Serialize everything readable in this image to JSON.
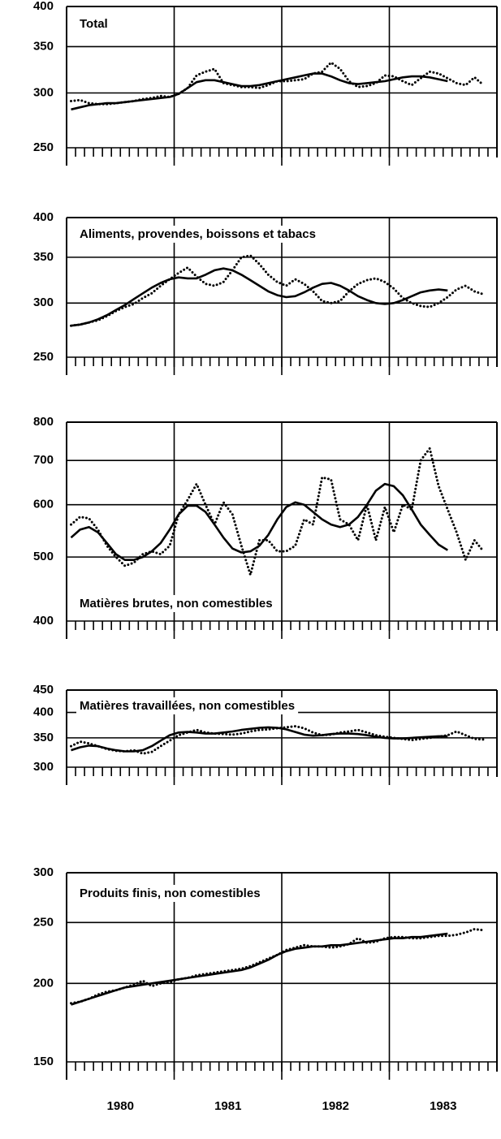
{
  "chart_data": [
    {
      "type": "line",
      "title": "Total",
      "log": true,
      "grid": true,
      "ylim": [
        250,
        400
      ],
      "yticks": [
        250,
        300,
        350,
        400
      ],
      "x": [
        "1980-01",
        "1980-02",
        "1980-03",
        "1980-04",
        "1980-05",
        "1980-06",
        "1980-07",
        "1980-08",
        "1980-09",
        "1980-10",
        "1980-11",
        "1980-12",
        "1981-01",
        "1981-02",
        "1981-03",
        "1981-04",
        "1981-05",
        "1981-06",
        "1981-07",
        "1981-08",
        "1981-09",
        "1981-10",
        "1981-11",
        "1981-12",
        "1982-01",
        "1982-02",
        "1982-03",
        "1982-04",
        "1982-05",
        "1982-06",
        "1982-07",
        "1982-08",
        "1982-09",
        "1982-10",
        "1982-11",
        "1982-12",
        "1983-01",
        "1983-02",
        "1983-03",
        "1983-04",
        "1983-05",
        "1983-06",
        "1983-07",
        "1983-08",
        "1983-09",
        "1983-10",
        "1983-11"
      ],
      "series": [
        {
          "color": "#000000",
          "style": "dotted",
          "values": [
            292,
            293,
            290,
            289,
            289,
            290,
            291,
            292,
            294,
            295,
            297,
            296,
            299,
            305,
            318,
            322,
            325,
            310,
            308,
            306,
            306,
            305,
            308,
            312,
            312,
            313,
            314,
            320,
            322,
            332,
            325,
            312,
            306,
            307,
            310,
            318,
            317,
            312,
            308,
            315,
            322,
            320,
            315,
            310,
            308,
            316,
            308
          ]
        },
        {
          "color": "#000000",
          "style": "solid",
          "values": [
            284,
            286,
            288,
            289,
            290,
            290,
            291,
            292,
            293,
            294,
            295,
            296,
            299,
            305,
            311,
            313,
            313,
            311,
            309,
            307,
            307,
            308,
            310,
            312,
            314,
            316,
            318,
            320,
            320,
            317,
            313,
            310,
            309,
            310,
            311,
            312,
            314,
            316,
            317,
            317,
            316,
            314,
            312,
            null,
            null,
            null,
            null
          ]
        }
      ]
    },
    {
      "type": "line",
      "title": "Aliments, provendes, boissons et tabacs",
      "log": true,
      "grid": true,
      "ylim": [
        250,
        400
      ],
      "yticks": [
        250,
        300,
        350,
        400
      ],
      "x": [
        "1980-01",
        "1980-02",
        "1980-03",
        "1980-04",
        "1980-05",
        "1980-06",
        "1980-07",
        "1980-08",
        "1980-09",
        "1980-10",
        "1980-11",
        "1980-12",
        "1981-01",
        "1981-02",
        "1981-03",
        "1981-04",
        "1981-05",
        "1981-06",
        "1981-07",
        "1981-08",
        "1981-09",
        "1981-10",
        "1981-11",
        "1981-12",
        "1982-01",
        "1982-02",
        "1982-03",
        "1982-04",
        "1982-05",
        "1982-06",
        "1982-07",
        "1982-08",
        "1982-09",
        "1982-10",
        "1982-11",
        "1982-12",
        "1983-01",
        "1983-02",
        "1983-03",
        "1983-04",
        "1983-05",
        "1983-06",
        "1983-07",
        "1983-08",
        "1983-09",
        "1983-10",
        "1983-11"
      ],
      "series": [
        {
          "color": "#000000",
          "style": "dotted",
          "values": [
            278,
            279,
            281,
            283,
            287,
            292,
            296,
            299,
            305,
            310,
            318,
            325,
            332,
            338,
            328,
            320,
            318,
            322,
            335,
            350,
            352,
            342,
            330,
            322,
            318,
            325,
            320,
            312,
            302,
            300,
            302,
            312,
            320,
            324,
            326,
            322,
            315,
            305,
            300,
            297,
            296,
            300,
            306,
            314,
            318,
            312,
            309
          ]
        },
        {
          "color": "#000000",
          "style": "solid",
          "values": [
            278,
            279,
            281,
            284,
            288,
            293,
            298,
            304,
            310,
            316,
            321,
            325,
            327,
            326,
            326,
            330,
            335,
            337,
            335,
            330,
            324,
            318,
            312,
            308,
            306,
            307,
            311,
            316,
            320,
            321,
            318,
            313,
            307,
            303,
            300,
            299,
            300,
            303,
            307,
            311,
            313,
            314,
            313,
            null,
            null,
            null,
            null
          ]
        }
      ]
    },
    {
      "type": "line",
      "title": "Matières brutes, non comestibles",
      "log": true,
      "grid": true,
      "ylim": [
        400,
        800
      ],
      "yticks": [
        400,
        500,
        600,
        700,
        800
      ],
      "x": [
        "1980-01",
        "1980-02",
        "1980-03",
        "1980-04",
        "1980-05",
        "1980-06",
        "1980-07",
        "1980-08",
        "1980-09",
        "1980-10",
        "1980-11",
        "1980-12",
        "1981-01",
        "1981-02",
        "1981-03",
        "1981-04",
        "1981-05",
        "1981-06",
        "1981-07",
        "1981-08",
        "1981-09",
        "1981-10",
        "1981-11",
        "1981-12",
        "1982-01",
        "1982-02",
        "1982-03",
        "1982-04",
        "1982-05",
        "1982-06",
        "1982-07",
        "1982-08",
        "1982-09",
        "1982-10",
        "1982-11",
        "1982-12",
        "1983-01",
        "1983-02",
        "1983-03",
        "1983-04",
        "1983-05",
        "1983-06",
        "1983-07",
        "1983-08",
        "1983-09",
        "1983-10",
        "1983-11"
      ],
      "series": [
        {
          "color": "#000000",
          "style": "dotted",
          "values": [
            560,
            575,
            572,
            550,
            520,
            500,
            485,
            490,
            505,
            510,
            505,
            520,
            580,
            610,
            645,
            600,
            560,
            605,
            580,
            520,
            470,
            530,
            530,
            510,
            510,
            520,
            570,
            560,
            660,
            655,
            570,
            560,
            530,
            600,
            530,
            595,
            545,
            600,
            590,
            700,
            730,
            640,
            590,
            545,
            495,
            530,
            510
          ]
        },
        {
          "color": "#000000",
          "style": "solid",
          "values": [
            535,
            550,
            555,
            545,
            525,
            505,
            495,
            495,
            500,
            510,
            525,
            550,
            580,
            598,
            598,
            585,
            560,
            535,
            515,
            508,
            510,
            520,
            540,
            570,
            595,
            605,
            600,
            585,
            570,
            560,
            555,
            560,
            575,
            600,
            630,
            645,
            640,
            620,
            590,
            560,
            540,
            522,
            512,
            null,
            null,
            null,
            null
          ]
        }
      ]
    },
    {
      "type": "line",
      "title": "Matières travaillées, non comestibles",
      "log": true,
      "grid": true,
      "ylim": [
        300,
        450
      ],
      "yticks": [
        300,
        350,
        400,
        450
      ],
      "x": [
        "1980-01",
        "1980-02",
        "1980-03",
        "1980-04",
        "1980-05",
        "1980-06",
        "1980-07",
        "1980-08",
        "1980-09",
        "1980-10",
        "1980-11",
        "1980-12",
        "1981-01",
        "1981-02",
        "1981-03",
        "1981-04",
        "1981-05",
        "1981-06",
        "1981-07",
        "1981-08",
        "1981-09",
        "1981-10",
        "1981-11",
        "1981-12",
        "1982-01",
        "1982-02",
        "1982-03",
        "1982-04",
        "1982-05",
        "1982-06",
        "1982-07",
        "1982-08",
        "1982-09",
        "1982-10",
        "1982-11",
        "1982-12",
        "1983-01",
        "1983-02",
        "1983-03",
        "1983-04",
        "1983-05",
        "1983-06",
        "1983-07",
        "1983-08",
        "1983-09",
        "1983-10",
        "1983-11"
      ],
      "series": [
        {
          "color": "#000000",
          "style": "dotted",
          "values": [
            335,
            343,
            340,
            335,
            330,
            327,
            326,
            328,
            322,
            325,
            335,
            345,
            355,
            360,
            365,
            360,
            358,
            357,
            356,
            358,
            362,
            365,
            366,
            368,
            370,
            372,
            368,
            360,
            355,
            356,
            360,
            362,
            365,
            360,
            355,
            352,
            350,
            348,
            346,
            348,
            350,
            352,
            355,
            362,
            355,
            348,
            347
          ]
        },
        {
          "color": "#000000",
          "style": "solid",
          "values": [
            328,
            333,
            336,
            335,
            331,
            328,
            326,
            326,
            328,
            335,
            345,
            355,
            360,
            361,
            360,
            358,
            358,
            360,
            362,
            365,
            367,
            369,
            370,
            369,
            366,
            361,
            356,
            354,
            355,
            357,
            358,
            358,
            357,
            355,
            352,
            350,
            349,
            349,
            350,
            351,
            352,
            353,
            353,
            null,
            null,
            null,
            null
          ]
        }
      ]
    },
    {
      "type": "line",
      "title": "Produits finis, non comestibles",
      "log": true,
      "grid": true,
      "ylim": [
        150,
        300
      ],
      "yticks": [
        150,
        200,
        250,
        300
      ],
      "year_labels": [
        "1980",
        "1981",
        "1982",
        "1983"
      ],
      "x": [
        "1980-01",
        "1980-02",
        "1980-03",
        "1980-04",
        "1980-05",
        "1980-06",
        "1980-07",
        "1980-08",
        "1980-09",
        "1980-10",
        "1980-11",
        "1980-12",
        "1981-01",
        "1981-02",
        "1981-03",
        "1981-04",
        "1981-05",
        "1981-06",
        "1981-07",
        "1981-08",
        "1981-09",
        "1981-10",
        "1981-11",
        "1981-12",
        "1982-01",
        "1982-02",
        "1982-03",
        "1982-04",
        "1982-05",
        "1982-06",
        "1982-07",
        "1982-08",
        "1982-09",
        "1982-10",
        "1982-11",
        "1982-12",
        "1983-01",
        "1983-02",
        "1983-03",
        "1983-04",
        "1983-05",
        "1983-06",
        "1983-07",
        "1983-08",
        "1983-09",
        "1983-10",
        "1983-11"
      ],
      "series": [
        {
          "color": "#000000",
          "style": "dotted",
          "values": [
            186,
            187,
            189,
            192,
            194,
            195,
            197,
            199,
            202,
            198,
            200,
            201,
            203,
            204,
            206,
            207,
            208,
            209,
            210,
            211,
            213,
            216,
            219,
            222,
            226,
            228,
            230,
            229,
            229,
            228,
            229,
            231,
            236,
            232,
            233,
            236,
            237,
            237,
            236,
            236,
            237,
            238,
            238,
            239,
            241,
            244,
            243
          ]
        },
        {
          "color": "#000000",
          "style": "solid",
          "values": [
            185,
            187,
            189,
            191,
            193,
            195,
            197,
            198,
            199,
            200,
            201,
            202,
            203,
            204,
            205,
            206,
            207,
            208,
            209,
            210,
            212,
            215,
            218,
            222,
            225,
            227,
            228,
            229,
            229,
            230,
            230,
            231,
            232,
            233,
            234,
            235,
            236,
            236,
            237,
            237,
            238,
            239,
            240,
            null,
            null,
            null,
            null
          ]
        }
      ]
    }
  ]
}
